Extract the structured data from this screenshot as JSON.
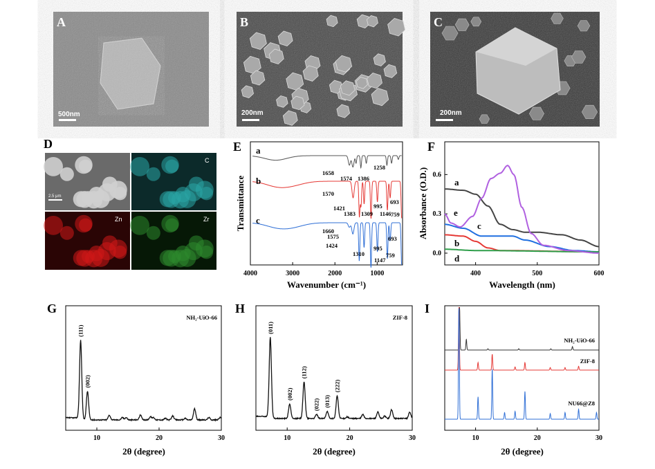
{
  "panels": {
    "A": {
      "letter": "A",
      "scale_bar": "500nm"
    },
    "B": {
      "letter": "B",
      "scale_bar": "200nm"
    },
    "C": {
      "letter": "C",
      "scale_bar": "200nm"
    },
    "D": {
      "letter": "D",
      "scale_bar": "2.5 μm",
      "maps": [
        "C",
        "Zn",
        "Zr"
      ],
      "map_colors": [
        "#2aa6a6",
        "#d01818",
        "#2e8a2e"
      ]
    },
    "E": {
      "letter": "E"
    },
    "F": {
      "letter": "F"
    },
    "G": {
      "letter": "G"
    },
    "H": {
      "letter": "H"
    },
    "I": {
      "letter": "I"
    }
  },
  "chart_data": [
    {
      "panel": "E",
      "type": "line",
      "xlabel": "Wavenumber (cm⁻¹)",
      "ylabel": "Transmittance",
      "xlim": [
        4000,
        400
      ],
      "xticks": [
        "4000",
        "3000",
        "2000",
        "1000"
      ],
      "xtick_values": [
        4000,
        3000,
        2000,
        1000
      ],
      "series": [
        {
          "name": "a",
          "color": "#555555",
          "dips": [
            [
              3400,
              0.12
            ],
            [
              1658,
              0.25
            ],
            [
              1574,
              0.3
            ],
            [
              1500,
              0.2
            ],
            [
              1386,
              0.32
            ],
            [
              1258,
              0.2
            ],
            [
              770,
              0.25
            ],
            [
              660,
              0.2
            ],
            [
              500,
              0.1
            ]
          ]
        },
        {
          "name": "b",
          "color": "#e53935",
          "dips": [
            [
              3400,
              0.1
            ],
            [
              3130,
              0.05
            ],
            [
              2930,
              0.05
            ],
            [
              1570,
              0.4
            ],
            [
              1421,
              0.85
            ],
            [
              1383,
              0.6
            ],
            [
              1309,
              0.55
            ],
            [
              1146,
              0.9
            ],
            [
              995,
              0.5
            ],
            [
              759,
              0.7
            ],
            [
              693,
              0.4
            ],
            [
              420,
              0.9
            ]
          ]
        },
        {
          "name": "c",
          "color": "#2f6fd6",
          "dips": [
            [
              3400,
              0.08
            ],
            [
              3130,
              0.05
            ],
            [
              2930,
              0.05
            ],
            [
              1660,
              0.1
            ],
            [
              1575,
              0.25
            ],
            [
              1424,
              0.85
            ],
            [
              1310,
              0.55
            ],
            [
              1147,
              1.0
            ],
            [
              995,
              0.65
            ],
            [
              759,
              0.8
            ],
            [
              693,
              0.4
            ],
            [
              420,
              0.95
            ]
          ]
        }
      ],
      "annotations": [
        "1658",
        "1574",
        "1386",
        "1258",
        "1570",
        "1421",
        "1383",
        "1309",
        "1146",
        "995",
        "759",
        "693",
        "1660",
        "1575",
        "1424",
        "1310",
        "1147",
        "995",
        "759",
        "693"
      ]
    },
    {
      "panel": "F",
      "type": "line",
      "xlabel": "Wavelength (nm)",
      "ylabel": "Absorbance (O.D.)",
      "xlim": [
        350,
        600
      ],
      "ylim": [
        -0.09,
        0.85
      ],
      "xticks": [
        "400",
        "500",
        "600"
      ],
      "xtick_values": [
        400,
        500,
        600
      ],
      "yticks": [
        "0.0",
        "0.3",
        "0.6"
      ],
      "ytick_values": [
        0,
        0.3,
        0.6
      ],
      "series": [
        {
          "name": "a",
          "color": "#444444",
          "points": [
            [
              350,
              0.49
            ],
            [
              380,
              0.48
            ],
            [
              400,
              0.45
            ],
            [
              420,
              0.36
            ],
            [
              440,
              0.22
            ],
            [
              460,
              0.18
            ],
            [
              480,
              0.16
            ],
            [
              500,
              0.16
            ],
            [
              540,
              0.14
            ],
            [
              570,
              0.1
            ],
            [
              600,
              0.05
            ]
          ]
        },
        {
          "name": "b",
          "color": "#e53935",
          "points": [
            [
              350,
              0.14
            ],
            [
              380,
              0.13
            ],
            [
              400,
              0.09
            ],
            [
              420,
              0.04
            ],
            [
              440,
              0.02
            ],
            [
              600,
              0.01
            ]
          ]
        },
        {
          "name": "c",
          "color": "#1f6fe0",
          "points": [
            [
              350,
              0.22
            ],
            [
              380,
              0.19
            ],
            [
              410,
              0.13
            ],
            [
              460,
              0.13
            ],
            [
              480,
              0.1
            ],
            [
              520,
              0.05
            ],
            [
              560,
              0.02
            ],
            [
              600,
              0.01
            ]
          ]
        },
        {
          "name": "d",
          "color": "#2e9e4a",
          "points": [
            [
              350,
              0.03
            ],
            [
              400,
              0.02
            ],
            [
              600,
              0.01
            ]
          ]
        },
        {
          "name": "e",
          "color": "#b060e0",
          "points": [
            [
              350,
              0.3
            ],
            [
              360,
              0.23
            ],
            [
              375,
              0.2
            ],
            [
              395,
              0.28
            ],
            [
              410,
              0.42
            ],
            [
              425,
              0.57
            ],
            [
              440,
              0.61
            ],
            [
              452,
              0.67
            ],
            [
              462,
              0.6
            ],
            [
              475,
              0.35
            ],
            [
              490,
              0.15
            ],
            [
              510,
              0.06
            ],
            [
              550,
              0.02
            ],
            [
              600,
              0.0
            ]
          ]
        }
      ]
    },
    {
      "panel": "G",
      "type": "line",
      "title": "NH₂-UiO-66",
      "xlabel": "2θ (degree)",
      "xlim": [
        5,
        30
      ],
      "xticks": [
        "10",
        "20",
        "30"
      ],
      "xtick_values": [
        10,
        20,
        30
      ],
      "peaks": [
        [
          7.4,
          1.0
        ],
        [
          8.5,
          0.36
        ],
        [
          12,
          0.06
        ],
        [
          14.1,
          0.03
        ],
        [
          14.7,
          0.03
        ],
        [
          17,
          0.06
        ],
        [
          18.6,
          0.04
        ],
        [
          19.1,
          0.03
        ],
        [
          21,
          0.02
        ],
        [
          22.2,
          0.05
        ],
        [
          24.2,
          0.02
        ],
        [
          25.7,
          0.14
        ],
        [
          28,
          0.03
        ],
        [
          29.8,
          0.03
        ]
      ],
      "peak_labels": [
        {
          "x": 7.4,
          "label": "(111)"
        },
        {
          "x": 8.5,
          "label": "(002)"
        }
      ]
    },
    {
      "panel": "H",
      "type": "line",
      "title": "ZIF-8",
      "xlabel": "2θ (degree)",
      "xlim": [
        5,
        30
      ],
      "xticks": [
        "10",
        "20",
        "30"
      ],
      "xtick_values": [
        10,
        20,
        30
      ],
      "peaks": [
        [
          7.3,
          1.0
        ],
        [
          10.4,
          0.18
        ],
        [
          12.7,
          0.45
        ],
        [
          14.7,
          0.05
        ],
        [
          16.4,
          0.09
        ],
        [
          18,
          0.28
        ],
        [
          19.6,
          0.02
        ],
        [
          22.1,
          0.05
        ],
        [
          24.5,
          0.08
        ],
        [
          25.6,
          0.03
        ],
        [
          26.7,
          0.11
        ],
        [
          29.6,
          0.08
        ]
      ],
      "peak_labels": [
        {
          "x": 7.3,
          "label": "(011)"
        },
        {
          "x": 10.4,
          "label": "(002)"
        },
        {
          "x": 12.7,
          "label": "(112)"
        },
        {
          "x": 14.7,
          "label": "(022)"
        },
        {
          "x": 16.4,
          "label": "(013)"
        },
        {
          "x": 18,
          "label": "(222)"
        }
      ]
    },
    {
      "panel": "I",
      "type": "line",
      "xlabel": "2θ (degree)",
      "xlim": [
        5,
        30
      ],
      "xticks": [
        "10",
        "20",
        "30"
      ],
      "xtick_values": [
        10,
        20,
        30
      ],
      "series": [
        {
          "name": "NH₂-UiO-66",
          "color": "#333333",
          "peaks": [
            [
              7.4,
              1.0
            ],
            [
              8.5,
              0.25
            ],
            [
              12,
              0.03
            ],
            [
              17,
              0.03
            ],
            [
              22.2,
              0.03
            ],
            [
              25.7,
              0.08
            ]
          ]
        },
        {
          "name": "ZIF-8",
          "color": "#e53935",
          "peaks": [
            [
              7.3,
              1.0
            ],
            [
              10.4,
              0.12
            ],
            [
              12.7,
              0.25
            ],
            [
              16.4,
              0.05
            ],
            [
              18,
              0.12
            ],
            [
              22.1,
              0.04
            ],
            [
              24.5,
              0.04
            ],
            [
              26.7,
              0.06
            ]
          ]
        },
        {
          "name": "NU66@Z8",
          "color": "#2f6fd6",
          "peaks": [
            [
              7.3,
              1.0
            ],
            [
              10.4,
              0.2
            ],
            [
              12.7,
              0.45
            ],
            [
              14.7,
              0.06
            ],
            [
              16.4,
              0.07
            ],
            [
              18,
              0.25
            ],
            [
              22.1,
              0.05
            ],
            [
              24.5,
              0.06
            ],
            [
              26.7,
              0.09
            ],
            [
              29.6,
              0.06
            ]
          ]
        }
      ]
    }
  ]
}
